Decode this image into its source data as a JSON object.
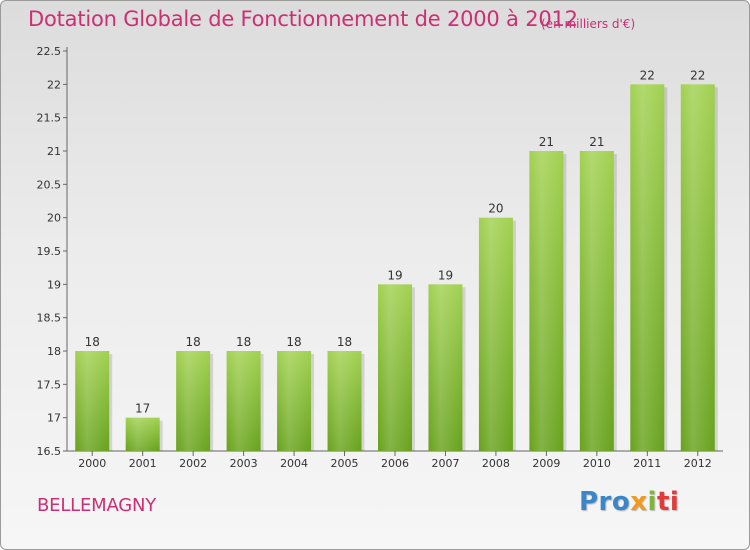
{
  "header": {
    "title": "Dotation Globale de Fonctionnement de 2000 à 2012",
    "unit": "(en milliers d'€)"
  },
  "footer": {
    "town": "BELLEMAGNY",
    "brand": {
      "p1": "Pro",
      "p2": "x",
      "p3": "i",
      "p4": "ti"
    }
  },
  "chart_data": {
    "type": "bar",
    "title": "Dotation Globale de Fonctionnement de 2000 à 2012",
    "subtitle": "(en milliers d'€)",
    "categories": [
      "2000",
      "2001",
      "2002",
      "2003",
      "2004",
      "2005",
      "2006",
      "2007",
      "2008",
      "2009",
      "2010",
      "2011",
      "2012"
    ],
    "values": [
      18,
      17,
      18,
      18,
      18,
      18,
      19,
      19,
      20,
      21,
      21,
      22,
      22
    ],
    "data_labels": [
      "18",
      "17",
      "18",
      "18",
      "18",
      "18",
      "19",
      "19",
      "20",
      "21",
      "21",
      "22",
      "22"
    ],
    "ylim": [
      16.5,
      22.5
    ],
    "yticks": [
      16.5,
      17,
      17.5,
      18,
      18.5,
      19,
      19.5,
      20,
      20.5,
      21,
      21.5,
      22,
      22.5
    ],
    "ytick_labels": [
      "16.5",
      "17",
      "17.5",
      "18",
      "18.5",
      "19",
      "19.5",
      "20",
      "20.5",
      "21",
      "21.5",
      "22",
      "22.5"
    ],
    "grid": false,
    "legend": "none",
    "colors": {
      "bar_light": "#a1d150",
      "bar_dark": "#67a21c",
      "text_accent": "#cc2f74"
    }
  }
}
